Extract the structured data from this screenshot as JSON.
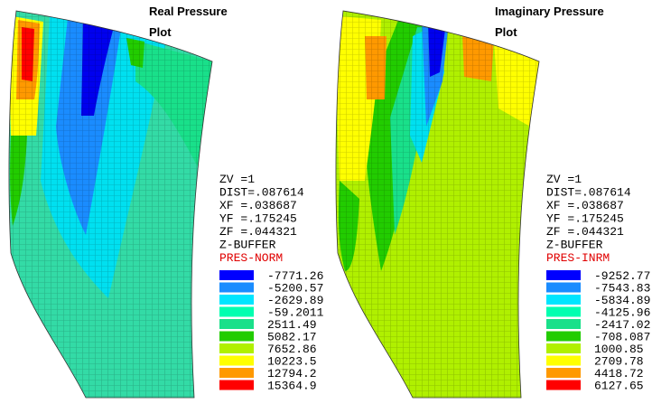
{
  "panels": [
    {
      "title_lines": [
        "Real Pressure",
        "Plot"
      ],
      "info_lines": [
        "ZV  =1",
        "DIST=.087614",
        "XF  =.038687",
        "YF  =.175245",
        "ZF  =.044321",
        "Z-BUFFER"
      ],
      "result_label": "PRES-NORM",
      "legend": [
        {
          "color": "#0000ff",
          "label": "-7771.26"
        },
        {
          "color": "#1a8cff",
          "label": "-5200.57"
        },
        {
          "color": "#00e5ff",
          "label": "-2629.89"
        },
        {
          "color": "#00ffb0",
          "label": "-59.2011"
        },
        {
          "color": "#19e08a",
          "label": "2511.49"
        },
        {
          "color": "#22cc00",
          "label": "5082.17"
        },
        {
          "color": "#b0f000",
          "label": "7652.86"
        },
        {
          "color": "#ffff00",
          "label": "10223.5"
        },
        {
          "color": "#ff9900",
          "label": "12794.2"
        },
        {
          "color": "#ff0000",
          "label": "15364.9"
        }
      ]
    },
    {
      "title_lines": [
        "Imaginary Pressure",
        "Plot"
      ],
      "info_lines": [
        "ZV  =1",
        "DIST=.087614",
        "XF  =.038687",
        "YF  =.175245",
        "ZF  =.044321",
        "Z-BUFFER"
      ],
      "result_label": "PRES-INRM",
      "legend": [
        {
          "color": "#0000ff",
          "label": "-9252.77"
        },
        {
          "color": "#1a8cff",
          "label": "-7543.83"
        },
        {
          "color": "#00e5ff",
          "label": "-5834.89"
        },
        {
          "color": "#00ffb0",
          "label": "-4125.96"
        },
        {
          "color": "#19e08a",
          "label": "-2417.02"
        },
        {
          "color": "#22cc00",
          "label": "-708.087"
        },
        {
          "color": "#b0f000",
          "label": "1000.85"
        },
        {
          "color": "#ffff00",
          "label": "2709.78"
        },
        {
          "color": "#ff9900",
          "label": "4418.72"
        },
        {
          "color": "#ff0000",
          "label": "6127.65"
        }
      ]
    }
  ]
}
